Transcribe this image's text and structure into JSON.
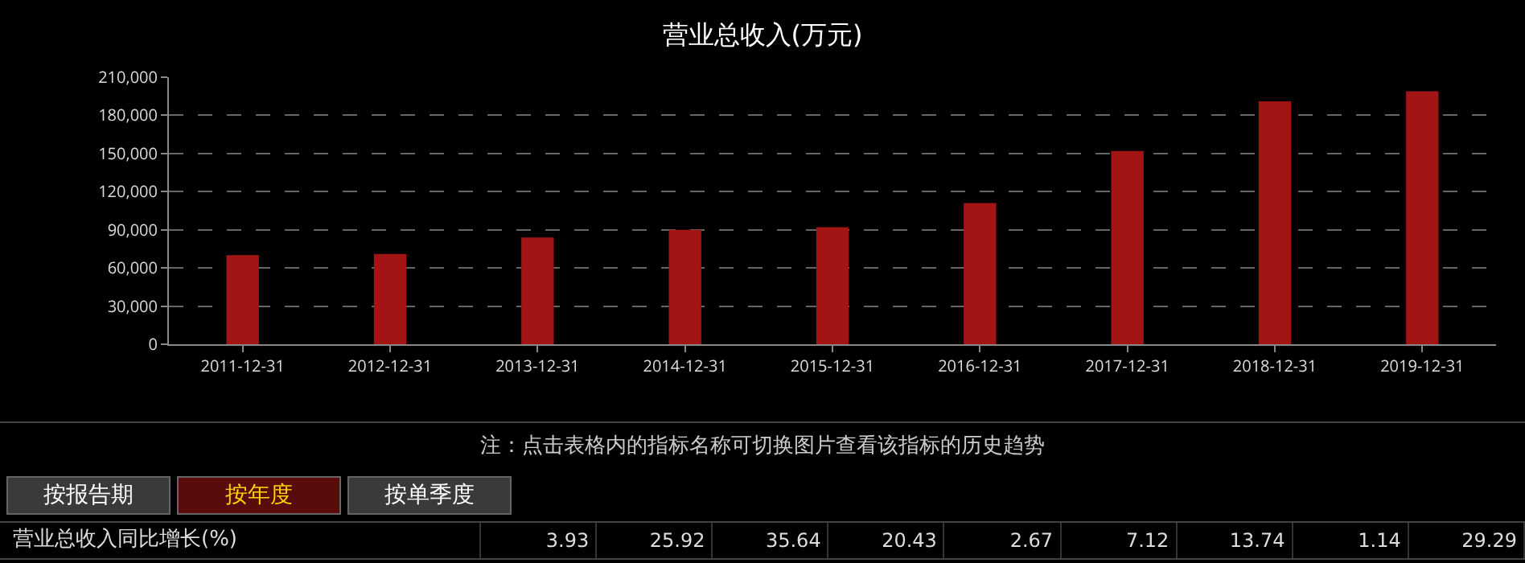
{
  "chart_data": {
    "type": "bar",
    "title": "营业总收入(万元)",
    "categories": [
      "2011-12-31",
      "2012-12-31",
      "2013-12-31",
      "2014-12-31",
      "2015-12-31",
      "2016-12-31",
      "2017-12-31",
      "2018-12-31",
      "2019-12-31"
    ],
    "values": [
      70000,
      71000,
      84000,
      90000,
      92000,
      111000,
      152000,
      191000,
      199000
    ],
    "color": "#a31515",
    "ylim": [
      0,
      210000
    ],
    "yticks": [
      {
        "value": 0,
        "label": "0"
      },
      {
        "value": 30000,
        "label": "30,000"
      },
      {
        "value": 60000,
        "label": "60,000"
      },
      {
        "value": 90000,
        "label": "90,000"
      },
      {
        "value": 120000,
        "label": "120,000"
      },
      {
        "value": 150000,
        "label": "150,000"
      },
      {
        "value": 180000,
        "label": "180,000"
      },
      {
        "value": 210000,
        "label": "210,000"
      }
    ],
    "grid": "y",
    "annotations": [
      "注：点击表格内的指标名称可切换图片查看该指标的历史趋势",
      "按报告期",
      "按年度",
      "按单季度",
      "营业总收入同比增长(%)",
      "3.93",
      "25.92",
      "35.64",
      "20.43",
      "2.67",
      "7.12",
      "13.74",
      "1.14",
      "29.29"
    ]
  }
}
